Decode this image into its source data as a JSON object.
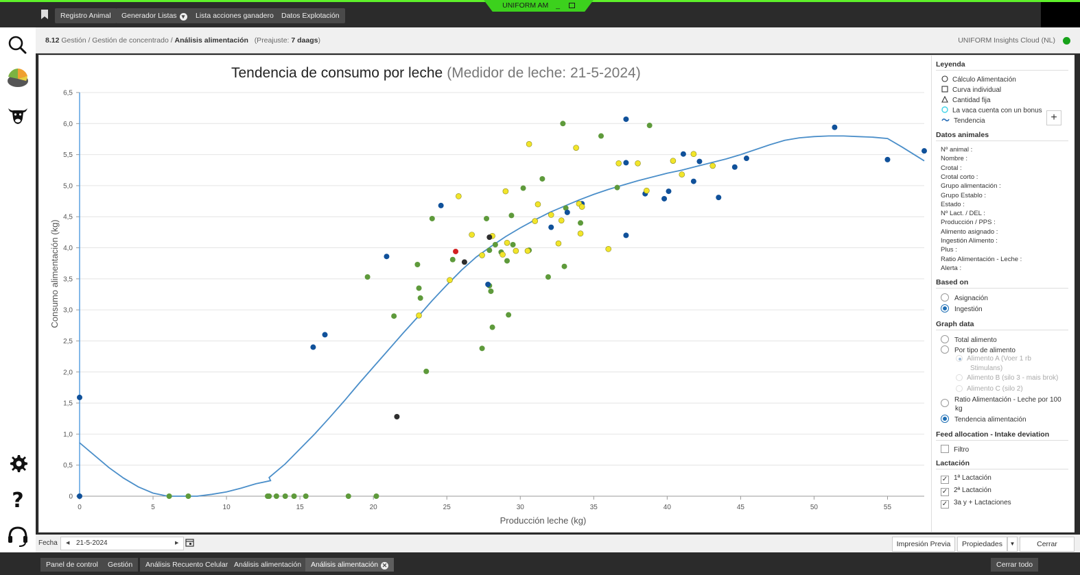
{
  "window": {
    "title": "UNIFORM AM",
    "min_symbol": "_"
  },
  "topbar": {
    "buttons": [
      "Registro Animal",
      "Generador Listas",
      "Lista acciones ganadero",
      "Datos Explotación"
    ]
  },
  "breadcrumb": {
    "code": "8.12",
    "path": "Gestión / Gestión de concentrado /",
    "current": "Análisis alimentación",
    "preset_label": "(Preajuste:",
    "preset_value": "7 daags",
    "preset_close": ")"
  },
  "cloud": {
    "label": "UNIFORM Insights Cloud (NL)",
    "status_color": "#17a21a"
  },
  "chart_data": {
    "type": "scatter",
    "title": "Tendencia de consumo por leche",
    "subtitle": "(Medidor de leche: 21-5-2024)",
    "xlabel": "Producción leche (kg)",
    "ylabel": "Consumo alimentación (kg)",
    "xlim": [
      0,
      57.5
    ],
    "ylim": [
      0,
      6.5
    ],
    "xticks": [
      0,
      5,
      10,
      15,
      20,
      25,
      30,
      35,
      40,
      45,
      50,
      55
    ],
    "yticks": [
      "0",
      "0,5",
      "1,0",
      "1,5",
      "2,0",
      "2,5",
      "3,0",
      "3,5",
      "4,0",
      "4,5",
      "5,0",
      "5,5",
      "6,0",
      "6,5"
    ],
    "grid": true,
    "colors": {
      "green": "#5e9a3b",
      "blue": "#10519a",
      "yellow": "#f2e52a",
      "dark": "#2e2e2e",
      "red": "#d42020",
      "trend": "#4a8ec9"
    },
    "trend": [
      [
        0,
        0.86
      ],
      [
        1,
        0.66
      ],
      [
        2,
        0.46
      ],
      [
        3,
        0.29
      ],
      [
        4,
        0.15
      ],
      [
        5,
        0.05
      ],
      [
        6,
        0.0
      ],
      [
        7,
        0.0
      ],
      [
        8,
        0.0
      ],
      [
        9,
        0.03
      ],
      [
        10,
        0.07
      ],
      [
        11,
        0.13
      ],
      [
        12,
        0.2
      ],
      [
        13,
        0.25
      ],
      [
        12.9,
        0.3
      ],
      [
        14,
        0.52
      ],
      [
        15,
        0.76
      ],
      [
        16,
        1.0
      ],
      [
        17,
        1.26
      ],
      [
        18,
        1.53
      ],
      [
        19,
        1.81
      ],
      [
        20,
        2.08
      ],
      [
        21,
        2.35
      ],
      [
        22,
        2.62
      ],
      [
        23,
        2.88
      ],
      [
        24,
        3.15
      ],
      [
        25,
        3.4
      ],
      [
        26,
        3.64
      ],
      [
        27,
        3.85
      ],
      [
        28,
        4.02
      ],
      [
        29,
        4.18
      ],
      [
        30,
        4.32
      ],
      [
        31,
        4.45
      ],
      [
        32,
        4.57
      ],
      [
        33,
        4.67
      ],
      [
        34,
        4.77
      ],
      [
        35,
        4.86
      ],
      [
        36,
        4.94
      ],
      [
        37,
        5.01
      ],
      [
        38,
        5.08
      ],
      [
        39,
        5.14
      ],
      [
        40,
        5.2
      ],
      [
        41,
        5.25
      ],
      [
        42,
        5.31
      ],
      [
        43,
        5.37
      ],
      [
        44,
        5.43
      ],
      [
        45,
        5.5
      ],
      [
        46,
        5.58
      ],
      [
        47,
        5.66
      ],
      [
        48,
        5.73
      ],
      [
        49,
        5.77
      ],
      [
        50,
        5.79
      ],
      [
        51,
        5.8
      ],
      [
        52,
        5.8
      ],
      [
        53,
        5.79
      ],
      [
        54,
        5.78
      ],
      [
        55,
        5.76
      ],
      [
        56,
        5.62
      ],
      [
        57.5,
        5.4
      ]
    ],
    "series": [
      {
        "color_key": "green",
        "points": [
          [
            6.1,
            0
          ],
          [
            7.4,
            0
          ],
          [
            12.8,
            0
          ],
          [
            12.9,
            0
          ],
          [
            13.4,
            0
          ],
          [
            14.0,
            0
          ],
          [
            14.6,
            0
          ],
          [
            15.4,
            0
          ],
          [
            18.3,
            0
          ],
          [
            20.2,
            0
          ],
          [
            19.6,
            3.53
          ],
          [
            21.4,
            2.9
          ],
          [
            23.0,
            3.73
          ],
          [
            23.1,
            3.35
          ],
          [
            23.2,
            3.19
          ],
          [
            23.6,
            2.01
          ],
          [
            24.0,
            4.47
          ],
          [
            25.4,
            3.81
          ],
          [
            27.4,
            2.38
          ],
          [
            27.7,
            4.47
          ],
          [
            27.9,
            3.39
          ],
          [
            27.9,
            3.96
          ],
          [
            28.0,
            3.3
          ],
          [
            28.1,
            2.72
          ],
          [
            28.3,
            4.05
          ],
          [
            28.7,
            3.93
          ],
          [
            29.1,
            3.79
          ],
          [
            29.2,
            2.92
          ],
          [
            29.4,
            4.52
          ],
          [
            29.5,
            4.05
          ],
          [
            30.2,
            4.96
          ],
          [
            30.6,
            3.96
          ],
          [
            31.5,
            5.11
          ],
          [
            31.9,
            3.53
          ],
          [
            32.9,
            6.0
          ],
          [
            33.0,
            3.7
          ],
          [
            33.1,
            4.64
          ],
          [
            34.1,
            4.4
          ],
          [
            35.5,
            5.8
          ],
          [
            36.6,
            4.97
          ],
          [
            38.8,
            5.97
          ]
        ]
      },
      {
        "color_key": "blue",
        "points": [
          [
            0,
            1.59
          ],
          [
            0,
            0
          ],
          [
            15.9,
            2.4
          ],
          [
            16.7,
            2.6
          ],
          [
            20.9,
            3.86
          ],
          [
            24.6,
            4.68
          ],
          [
            27.8,
            3.41
          ],
          [
            32.1,
            4.33
          ],
          [
            33.2,
            4.57
          ],
          [
            34.2,
            4.71
          ],
          [
            37.2,
            6.07
          ],
          [
            37.2,
            5.37
          ],
          [
            37.2,
            4.2
          ],
          [
            38.5,
            4.87
          ],
          [
            39.8,
            4.79
          ],
          [
            40.1,
            4.91
          ],
          [
            41.1,
            5.51
          ],
          [
            41.8,
            5.07
          ],
          [
            42.2,
            5.39
          ],
          [
            43.5,
            4.81
          ],
          [
            44.6,
            5.3
          ],
          [
            45.4,
            5.44
          ],
          [
            51.4,
            5.94
          ],
          [
            55.0,
            5.42
          ],
          [
            57.5,
            5.56
          ]
        ]
      },
      {
        "color_key": "yellow",
        "points": [
          [
            23.1,
            2.91
          ],
          [
            25.2,
            3.48
          ],
          [
            25.8,
            4.83
          ],
          [
            26.7,
            4.21
          ],
          [
            27.4,
            3.88
          ],
          [
            28.1,
            4.19
          ],
          [
            28.8,
            3.89
          ],
          [
            29.0,
            4.91
          ],
          [
            29.1,
            4.08
          ],
          [
            29.7,
            3.95
          ],
          [
            30.5,
            3.95
          ],
          [
            30.6,
            5.67
          ],
          [
            31.0,
            4.43
          ],
          [
            31.2,
            4.7
          ],
          [
            32.1,
            4.53
          ],
          [
            32.6,
            4.07
          ],
          [
            32.8,
            4.44
          ],
          [
            33.8,
            5.61
          ],
          [
            34.0,
            4.71
          ],
          [
            34.1,
            4.23
          ],
          [
            34.2,
            4.66
          ],
          [
            36.0,
            3.98
          ],
          [
            36.7,
            5.36
          ],
          [
            38.0,
            5.36
          ],
          [
            38.6,
            4.92
          ],
          [
            40.4,
            5.4
          ],
          [
            41.0,
            5.18
          ],
          [
            41.8,
            5.51
          ],
          [
            43.1,
            5.32
          ]
        ]
      },
      {
        "color_key": "dark",
        "points": [
          [
            21.6,
            1.28
          ],
          [
            26.2,
            3.77
          ],
          [
            27.9,
            4.17
          ]
        ]
      },
      {
        "color_key": "red",
        "points": [
          [
            25.6,
            3.94
          ]
        ]
      }
    ]
  },
  "legend": {
    "title": "Leyenda",
    "items": [
      {
        "symbol": "circle",
        "label": "Cálculo Alimentación"
      },
      {
        "symbol": "square",
        "label": "Curva individual"
      },
      {
        "symbol": "triangle",
        "label": "Cantidad fija"
      },
      {
        "symbol": "circle-cyan",
        "label": "La vaca cuenta con un bonus"
      },
      {
        "symbol": "wave",
        "label": "Tendencia"
      }
    ],
    "plus": "+"
  },
  "animal_data": {
    "title": "Datos animales",
    "fields": [
      "Nº animal :",
      "Nombre :",
      "Crotal :",
      "Crotal corto :",
      "Grupo alimentación :",
      "Grupo Establo :",
      "Estado :",
      "Nº Lact. / DEL :",
      "Producción / PPS :",
      "Alimento asignado :",
      "Ingestión Alimento :",
      "Plus :",
      "Ratio Alimentación - Leche :",
      "Alerta :"
    ]
  },
  "based_on": {
    "title": "Based on",
    "options": [
      "Asignación",
      "Ingestión"
    ],
    "selected": "Ingestión"
  },
  "graph_data": {
    "title": "Graph data",
    "options": [
      "Total alimento",
      "Por tipo de alimento"
    ],
    "sub_a_line1": "Alimento A (Voer 1 rb",
    "sub_a_line2": "Stimulans)",
    "sub_b": "Alimento B (silo 3 - mais brok)",
    "sub_c": "Alimento C (silo 2)",
    "ratio_line1": "Ratio Alimentación - Leche por 100",
    "ratio_line2": "kg",
    "trend": "Tendencia alimentación",
    "selected": "Tendencia alimentación"
  },
  "feed_allocation": {
    "title": "Feed allocation - Intake deviation",
    "filter_label": "Filtro"
  },
  "lactation": {
    "title": "Lactación",
    "items": [
      "1ª Lactación",
      "2ª Lactación",
      "3a y + Lactaciones"
    ],
    "check": "✓"
  },
  "datebar": {
    "fecha_label": "Fecha",
    "date_value": "21-5-2024",
    "preview_btn": "Impresión Previa",
    "props_btn": "Propiedades",
    "close_btn": "Cerrar"
  },
  "taskbar": {
    "tabs": [
      "Panel de control",
      "Gestión",
      "Análisis Recuento Celular",
      "Análisis alimentación",
      "Análisis alimentación"
    ],
    "close_all": "Cerrar todo"
  }
}
